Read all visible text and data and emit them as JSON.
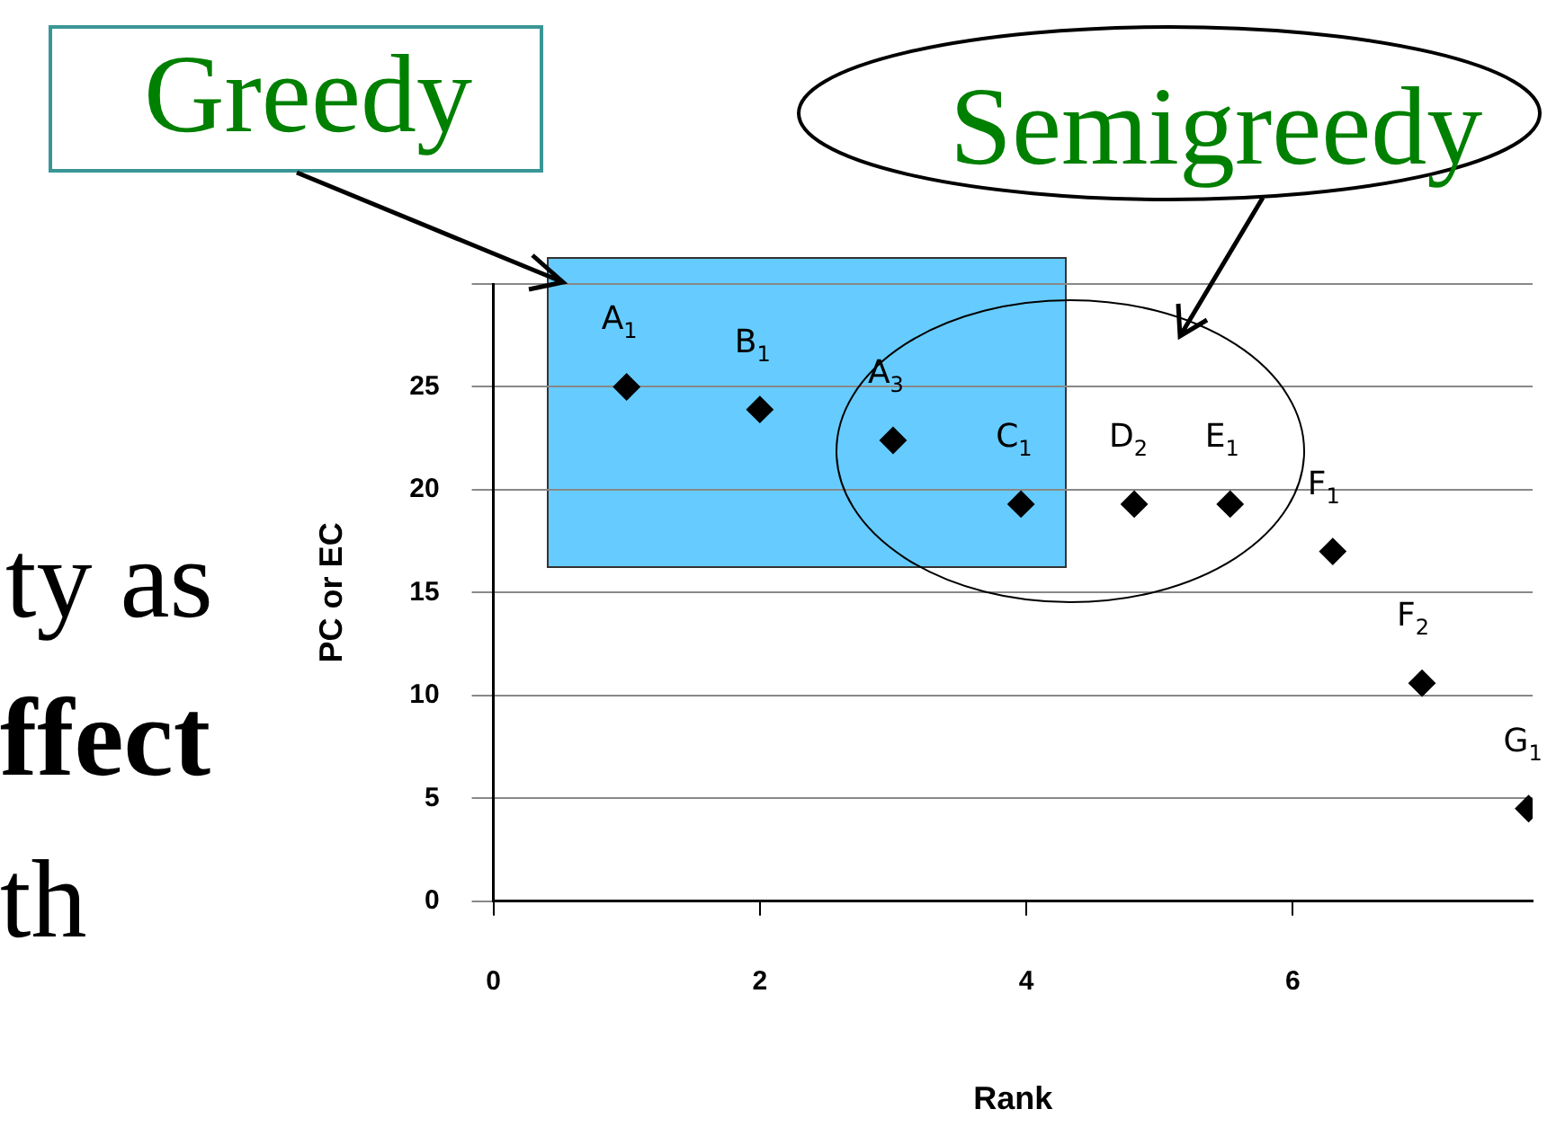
{
  "chart_data": {
    "type": "scatter",
    "xlabel": "Rank",
    "ylabel": "PC or EC",
    "x": [
      1,
      2,
      3,
      3.96,
      4.81,
      5.53,
      6.3,
      6.97,
      7.77
    ],
    "series": [
      {
        "color": "#000000",
        "values": [
          25,
          23.9,
          22.4,
          19.3,
          19.3,
          19.3,
          17,
          10.6,
          4.5
        ]
      }
    ],
    "xlim": [
      0,
      7.8
    ],
    "xticks": [
      0,
      2,
      4,
      6
    ],
    "ylim": [
      0,
      30
    ],
    "yticks": [
      0,
      5,
      10,
      15,
      20,
      25,
      {
        "value": 30,
        "label": null
      }
    ],
    "grid": "y",
    "legend": false,
    "marker": "diamond",
    "annotations": [
      "Greedy",
      "Semigreedy",
      "ty as",
      "ffect",
      "th",
      {
        "text": "A$_{1}$",
        "x": 1,
        "y": 25
      },
      {
        "text": "B$_{1}$",
        "x": 2,
        "y": 23.9
      },
      {
        "text": "A$_{3}$",
        "x": 3,
        "y": 22.4
      },
      {
        "text": "C$_{1}$",
        "x": 3.96,
        "y": 19.3
      },
      {
        "text": "D$_{2}$",
        "x": 4.81,
        "y": 19.3
      },
      {
        "text": "E$_{1}$",
        "x": 5.53,
        "y": 19.3
      },
      {
        "text": "F$_{1}$",
        "x": 6.3,
        "y": 17
      },
      {
        "text": "F$_{2}$",
        "x": 6.97,
        "y": 10.6
      },
      {
        "text": "G$_{1}$",
        "x": 7.77,
        "y": 4.5
      }
    ]
  }
}
